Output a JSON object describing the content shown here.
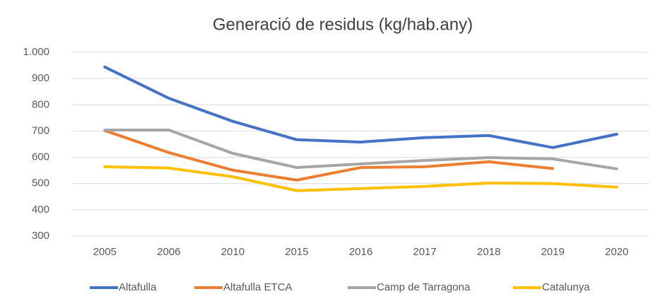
{
  "chart_data": {
    "type": "line",
    "title": "Generació de residus (kg/hab.any)",
    "categories": [
      "2005",
      "2006",
      "2010",
      "2015",
      "2016",
      "2017",
      "2018",
      "2019",
      "2020"
    ],
    "series": [
      {
        "name": "Altafulla",
        "color": "#4472c4",
        "values": [
          944,
          825,
          737,
          667,
          658,
          675,
          683,
          637,
          688
        ]
      },
      {
        "name": "Altafulla ETCA",
        "color": "#ed7d31",
        "values": [
          702,
          618,
          551,
          513,
          561,
          564,
          583,
          557,
          null
        ]
      },
      {
        "name": "Camp de Tarragona",
        "color": "#a5a5a5",
        "values": [
          704,
          704,
          615,
          561,
          575,
          588,
          599,
          594,
          556
        ]
      },
      {
        "name": "Catalunya",
        "color": "#ffc000",
        "values": [
          564,
          559,
          526,
          473,
          481,
          489,
          502,
          500,
          486
        ]
      }
    ],
    "ylim": [
      300,
      1000
    ],
    "yticks": [
      300,
      400,
      500,
      600,
      700,
      800,
      900,
      {
        "value": 1000,
        "label": "1.000"
      }
    ],
    "grid": true,
    "legend": "bottom"
  }
}
